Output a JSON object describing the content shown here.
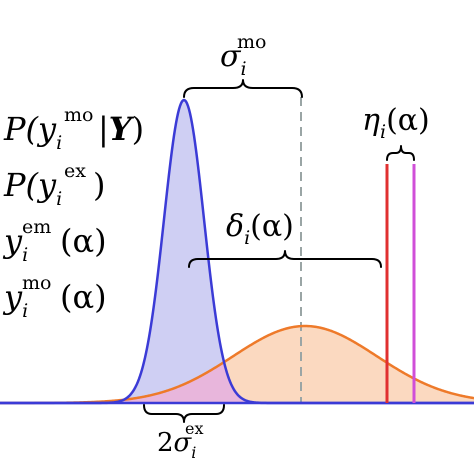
{
  "labels": {
    "legend_1_base": "P(y",
    "legend_1_sub": "i",
    "legend_1_sup": "mo",
    "legend_1_bar": "|",
    "legend_1_Y": "Y",
    "legend_1_close": ")",
    "legend_2_base": "P(y",
    "legend_2_sub": "i",
    "legend_2_sup": "ex",
    "legend_2_close": ")",
    "legend_3_base": "y",
    "legend_3_sub": "i",
    "legend_3_sup": "em",
    "legend_3_arg": "(α)",
    "legend_4_base": "y",
    "legend_4_sub": "i",
    "legend_4_sup": "mo",
    "legend_4_arg": "(α)",
    "sigma_mo_base": "σ",
    "sigma_mo_sub": "i",
    "sigma_mo_sup": "mo",
    "eta_base": "η",
    "eta_sub": "i",
    "eta_arg": "(α)",
    "delta_base": "δ",
    "delta_sub": "i",
    "delta_arg": "(α)",
    "two_sigma_coef": "2",
    "two_sigma_base": "σ",
    "two_sigma_sub": "i",
    "two_sigma_sup": "ex"
  },
  "colors": {
    "posterior_line": "#3b3bd6",
    "posterior_fill": "#cfcff3",
    "prior_line": "#ee7a2a",
    "prior_fill": "#fbd9c0",
    "overlap_fill": "#e8b6dc",
    "emulator_line": "#e03030",
    "model_line": "#d04fd8",
    "mean_dashed": "#9aa5a5",
    "axis": "#3b3bd6"
  }
}
